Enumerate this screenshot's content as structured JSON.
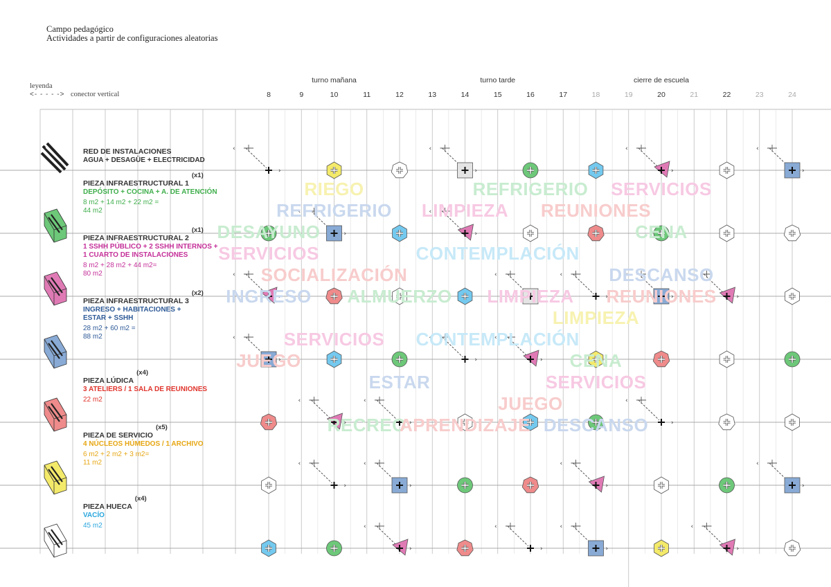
{
  "header": {
    "title": "Campo pedagógico",
    "subtitle": "Actividades a partir de configuraciones aleatorias"
  },
  "legend": {
    "title": "leyenda",
    "arrow": "<- - - - ->",
    "label": "conector vertical"
  },
  "shifts": [
    {
      "label": "turno mañana",
      "hour": 10
    },
    {
      "label": "turno tarde",
      "hour": 15
    },
    {
      "label": "cierre de escuela",
      "hour": 20
    }
  ],
  "hours": [
    "8",
    "9",
    "10",
    "11",
    "12",
    "13",
    "14",
    "15",
    "16",
    "17",
    "18",
    "19",
    "20",
    "21",
    "22",
    "23",
    "24"
  ],
  "dim_hours": [
    "18",
    "19",
    "21",
    "23",
    "24"
  ],
  "colors": {
    "green": "#6dc879",
    "blue": "#88aad5",
    "pink": "#e07ab5",
    "yellow": "#f4ea6a",
    "cyan": "#74c9ef",
    "salmon": "#ef8b8b",
    "grey": "#e4e4e4",
    "white": "#ffffff",
    "line": "#bdbdbd"
  },
  "rows": [
    {
      "title": "RED DE INSTALACIONES",
      "mult": "",
      "desc": [
        "AGUA + DESAGÜE + ELECTRICIDAD"
      ],
      "desc_color": "#333333",
      "area": [],
      "area_color": "#333333",
      "icon_color": "#555555",
      "markers": [
        {
          "hour": 8,
          "shape": "arrow"
        },
        {
          "hour": 10,
          "shape": "hex",
          "color": "yellow"
        },
        {
          "hour": 12,
          "shape": "pent",
          "color": "white"
        },
        {
          "hour": 14,
          "shape": "square",
          "color": "grey",
          "arrow": true
        },
        {
          "hour": 16,
          "shape": "circle",
          "color": "green"
        },
        {
          "hour": 18,
          "shape": "hex",
          "color": "cyan"
        },
        {
          "hour": 20,
          "shape": "tri",
          "color": "pink",
          "arrow": true
        },
        {
          "hour": 22,
          "shape": "hex",
          "color": "white"
        },
        {
          "hour": 24,
          "shape": "square",
          "color": "blue",
          "arrow": true
        }
      ]
    },
    {
      "title": "PIEZA INFRAESTRUCTURAL 1",
      "mult": "(x1)",
      "desc": [
        "DEPÓSITO + COCINA + A. DE ATENCIÓN"
      ],
      "desc_color": "#3fae4b",
      "area": [
        "8 m2 + 14 m2 + 22 m2 =",
        "44 m2"
      ],
      "area_color": "#3fae4b",
      "icon_color": "#6dc879",
      "markers": [
        {
          "hour": 8,
          "shape": "circle",
          "color": "green"
        },
        {
          "hour": 10,
          "shape": "square",
          "color": "blue",
          "arrow": true
        },
        {
          "hour": 12,
          "shape": "hex",
          "color": "cyan"
        },
        {
          "hour": 14,
          "shape": "tri",
          "color": "pink",
          "arrow": true
        },
        {
          "hour": 16,
          "shape": "hex",
          "color": "white"
        },
        {
          "hour": 18,
          "shape": "pent",
          "color": "salmon"
        },
        {
          "hour": 20,
          "shape": "circle",
          "color": "green"
        },
        {
          "hour": 22,
          "shape": "hex",
          "color": "white"
        },
        {
          "hour": 24,
          "shape": "pent",
          "color": "white"
        }
      ]
    },
    {
      "title": "PIEZA INFRAESTRUCTURAL 2",
      "mult": "(x1)",
      "desc": [
        "1 SSHH PÚBLICO + 2 SSHH INTERNOS +",
        "1 CUARTO DE INSTALACIONES"
      ],
      "desc_color": "#c42f98",
      "area": [
        "8 m2 + 28 m2 + 44 m2=",
        "80 m2"
      ],
      "area_color": "#c42f98",
      "icon_color": "#e07ab5",
      "markers": [
        {
          "hour": 8,
          "shape": "tri",
          "color": "pink",
          "arrow": true
        },
        {
          "hour": 10,
          "shape": "pent",
          "color": "salmon"
        },
        {
          "hour": 12,
          "shape": "hex",
          "color": "white"
        },
        {
          "hour": 14,
          "shape": "hex",
          "color": "cyan"
        },
        {
          "hour": 16,
          "shape": "square",
          "color": "grey",
          "arrow": true
        },
        {
          "hour": 18,
          "shape": "arrow"
        },
        {
          "hour": 20,
          "shape": "square",
          "color": "blue",
          "arrow": true
        },
        {
          "hour": 22,
          "shape": "tri",
          "color": "pink",
          "arrow": true
        },
        {
          "hour": 24,
          "shape": "hex",
          "color": "white"
        }
      ]
    },
    {
      "title": "PIEZA INFRAESTRUCTURAL 3",
      "mult": "(x2)",
      "desc": [
        "INGRESO + HABITACIONES +",
        "ESTAR + SSHH"
      ],
      "desc_color": "#2e5a97",
      "area": [
        "28 m2 + 60 m2 =",
        "88 m2"
      ],
      "area_color": "#2e5a97",
      "icon_color": "#88aad5",
      "markers": [
        {
          "hour": 8,
          "shape": "square",
          "color": "blue",
          "arrow": true
        },
        {
          "hour": 10,
          "shape": "hex",
          "color": "cyan"
        },
        {
          "hour": 12,
          "shape": "circle",
          "color": "green"
        },
        {
          "hour": 14,
          "shape": "arrow"
        },
        {
          "hour": 16,
          "shape": "tri",
          "color": "pink",
          "arrow": true
        },
        {
          "hour": 18,
          "shape": "hex",
          "color": "yellow"
        },
        {
          "hour": 20,
          "shape": "pent",
          "color": "salmon"
        },
        {
          "hour": 22,
          "shape": "hex",
          "color": "white"
        },
        {
          "hour": 24,
          "shape": "circle",
          "color": "green"
        }
      ]
    },
    {
      "title": "PIEZA LÚDICA",
      "mult": "(x4)",
      "desc": [
        "3 ATELIERS / 1 SALA DE REUNIONES"
      ],
      "desc_color": "#e0342c",
      "area": [
        "22 m2"
      ],
      "area_color": "#e0342c",
      "icon_color": "#ef8b8b",
      "markers": [
        {
          "hour": 8,
          "shape": "pent",
          "color": "salmon"
        },
        {
          "hour": 10,
          "shape": "tri",
          "color": "pink",
          "arrow": true
        },
        {
          "hour": 12,
          "shape": "arrow"
        },
        {
          "hour": 14,
          "shape": "hex",
          "color": "white"
        },
        {
          "hour": 16,
          "shape": "hex",
          "color": "cyan"
        },
        {
          "hour": 18,
          "shape": "circle",
          "color": "green"
        },
        {
          "hour": 20,
          "shape": "arrow"
        },
        {
          "hour": 22,
          "shape": "pent",
          "color": "white"
        },
        {
          "hour": 24,
          "shape": "hex",
          "color": "white"
        }
      ]
    },
    {
      "title": "PIEZA DE SERVICIO",
      "mult": "(x5)",
      "desc": [
        "4 NÚCLEOS HÚMEDOS / 1 ARCHIVO"
      ],
      "desc_color": "#e6a612",
      "area": [
        "6 m2 +  2 m2 + 3 m2=",
        "11 m2"
      ],
      "area_color": "#e6a612",
      "icon_color": "#f4ea6a",
      "markers": [
        {
          "hour": 8,
          "shape": "hex",
          "color": "white"
        },
        {
          "hour": 10,
          "shape": "arrow"
        },
        {
          "hour": 12,
          "shape": "square",
          "color": "blue",
          "arrow": true
        },
        {
          "hour": 14,
          "shape": "circle",
          "color": "green"
        },
        {
          "hour": 16,
          "shape": "pent",
          "color": "salmon"
        },
        {
          "hour": 18,
          "shape": "tri",
          "color": "pink",
          "arrow": true
        },
        {
          "hour": 20,
          "shape": "hex",
          "color": "white"
        },
        {
          "hour": 22,
          "shape": "circle",
          "color": "green"
        },
        {
          "hour": 24,
          "shape": "square",
          "color": "blue",
          "arrow": true
        }
      ]
    },
    {
      "title": "PIEZA HUECA",
      "mult": "(x4)",
      "desc": [
        "VACÍO"
      ],
      "desc_color": "#2aa6de",
      "area": [
        "45 m2"
      ],
      "area_color": "#2aa6de",
      "icon_color": "#ffffff",
      "markers": [
        {
          "hour": 8,
          "shape": "hex",
          "color": "cyan"
        },
        {
          "hour": 10,
          "shape": "circle",
          "color": "green"
        },
        {
          "hour": 12,
          "shape": "tri",
          "color": "pink",
          "arrow": true
        },
        {
          "hour": 14,
          "shape": "pent",
          "color": "salmon"
        },
        {
          "hour": 16,
          "shape": "arrow"
        },
        {
          "hour": 18,
          "shape": "square",
          "color": "blue",
          "arrow": true
        },
        {
          "hour": 20,
          "shape": "hex",
          "color": "yellow"
        },
        {
          "hour": 22,
          "shape": "tri",
          "color": "pink",
          "arrow": true
        },
        {
          "hour": 24,
          "shape": "pent",
          "color": "white"
        }
      ]
    }
  ],
  "activities": [
    {
      "text": "RIEGO",
      "color": "#f7f2b0",
      "hour": 10,
      "band": 0
    },
    {
      "text": "REFRIGERIO",
      "color": "#c8ecd0",
      "hour": 16,
      "band": 0
    },
    {
      "text": "SERVICIOS",
      "color": "#f7c9e3",
      "hour": 20,
      "band": 0
    },
    {
      "text": "REFRIGERIO",
      "color": "#c9d8ee",
      "hour": 10,
      "band": 1
    },
    {
      "text": "LIMPIEZA",
      "color": "#f7c9e3",
      "hour": 14,
      "band": 1
    },
    {
      "text": "REUNIONES",
      "color": "#f8cccc",
      "hour": 18,
      "band": 1
    },
    {
      "text": "DESAYUNO",
      "color": "#c8ecd0",
      "hour": 8,
      "band": 2
    },
    {
      "text": "CENA",
      "color": "#c8ecd0",
      "hour": 20,
      "band": 2
    },
    {
      "text": "SERVICIOS",
      "color": "#f7c9e3",
      "hour": 8,
      "band": 3
    },
    {
      "text": "CONTEMPLACIÓN",
      "color": "#c7e9f8",
      "hour": 15,
      "band": 3
    },
    {
      "text": "SOCIALIZACIÓN",
      "color": "#f8cccc",
      "hour": 10,
      "band": 4
    },
    {
      "text": "DESCANSO",
      "color": "#c9d8ee",
      "hour": 20,
      "band": 4
    },
    {
      "text": "INGRESO",
      "color": "#c9d8ee",
      "hour": 8,
      "band": 5
    },
    {
      "text": "ALMUERZO",
      "color": "#c8ecd0",
      "hour": 12,
      "band": 5
    },
    {
      "text": "LIMPIEZA",
      "color": "#f7c9e3",
      "hour": 16,
      "band": 5
    },
    {
      "text": "REUNIONES",
      "color": "#f8cccc",
      "hour": 20,
      "band": 5
    },
    {
      "text": "LIMPIEZA",
      "color": "#f7f2b0",
      "hour": 18,
      "band": 6
    },
    {
      "text": "SERVICIOS",
      "color": "#f7c9e3",
      "hour": 10,
      "band": 7
    },
    {
      "text": "CONTEMPLACIÓN",
      "color": "#c7e9f8",
      "hour": 15,
      "band": 7
    },
    {
      "text": "JUEGO",
      "color": "#f8cccc",
      "hour": 8,
      "band": 8
    },
    {
      "text": "CENA",
      "color": "#c8ecd0",
      "hour": 18,
      "band": 8
    },
    {
      "text": "ESTAR",
      "color": "#c9d8ee",
      "hour": 12,
      "band": 9
    },
    {
      "text": "SERVICIOS",
      "color": "#f7c9e3",
      "hour": 18,
      "band": 9
    },
    {
      "text": "JUEGO",
      "color": "#f8cccc",
      "hour": 16,
      "band": 10
    },
    {
      "text": "RECREO",
      "color": "#c8ecd0",
      "hour": 11,
      "band": 11
    },
    {
      "text": "APRENDIZAJE",
      "color": "#f8cccc",
      "hour": 14,
      "band": 11
    },
    {
      "text": "DESCANSO",
      "color": "#c9d8ee",
      "hour": 18,
      "band": 11
    }
  ]
}
